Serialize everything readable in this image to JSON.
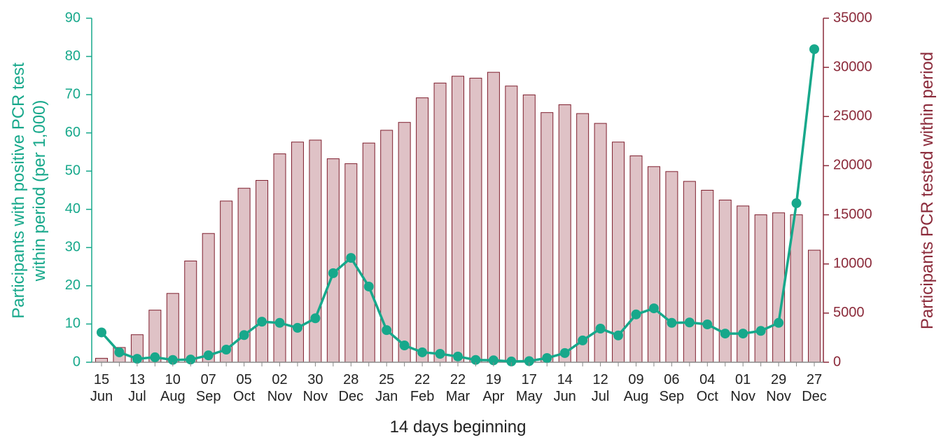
{
  "chart_data": {
    "type": "bar_line",
    "xlabel": "14 days beginning",
    "ylabel": "Participants with positive PCR test\nwithin period (per 1,000)",
    "y2label": "Participants PCR tested within period",
    "categories": [
      "15\nJun",
      null,
      "13\nJul",
      null,
      "10\nAug",
      null,
      "07\nSep",
      null,
      "05\nOct",
      null,
      "02\nNov",
      null,
      "30\nNov",
      null,
      "28\nDec",
      null,
      "25\nJan",
      null,
      "22\nFeb",
      null,
      "22\nMar",
      null,
      "19\nApr",
      null,
      "17\nMay",
      null,
      "14\nJun",
      null,
      "12\nJul",
      null,
      "09\nAug",
      null,
      "06\nSep",
      null,
      "04\nOct",
      null,
      "01\nNov",
      null,
      "29\nNov",
      null,
      "27\nDec"
    ],
    "ylim": [
      0,
      90
    ],
    "yticks": [
      0,
      10,
      20,
      30,
      40,
      50,
      60,
      70,
      80,
      90
    ],
    "y2lim": [
      0,
      35000
    ],
    "y2ticks": [
      0,
      5000,
      10000,
      15000,
      20000,
      25000,
      30000,
      35000
    ],
    "series": [
      {
        "name": "Participants PCR tested within period",
        "type": "bar",
        "axis": "y2",
        "color": "#dfc2c6",
        "edge": "#7f1f2e",
        "values": [
          400,
          1500,
          2800,
          5300,
          7000,
          10300,
          13100,
          16400,
          17700,
          18500,
          21200,
          22400,
          22600,
          20700,
          20200,
          22300,
          23600,
          24400,
          26900,
          28400,
          29100,
          28900,
          29500,
          28100,
          27200,
          25400,
          26200,
          25300,
          24300,
          22400,
          21000,
          19900,
          19400,
          18400,
          17500,
          16500,
          15900,
          15000,
          15200,
          15000,
          11400
        ]
      },
      {
        "name": "Participants with positive PCR test within period (per 1,000)",
        "type": "line",
        "axis": "y",
        "color": "#17a88b",
        "values": [
          7.8,
          2.6,
          0.9,
          1.3,
          0.6,
          0.7,
          1.8,
          3.3,
          7.1,
          10.6,
          10.3,
          9.0,
          11.5,
          23.3,
          27.3,
          19.8,
          8.4,
          4.4,
          2.6,
          2.2,
          1.5,
          0.6,
          0.5,
          0.2,
          0.3,
          1.1,
          2.4,
          5.7,
          8.8,
          7.0,
          12.5,
          14.1,
          10.3,
          10.4,
          9.9,
          7.5,
          7.5,
          8.2,
          10.3,
          41.6,
          81.9
        ]
      }
    ],
    "y_color": "#17a88b",
    "y2_color": "#8b2a3a"
  }
}
